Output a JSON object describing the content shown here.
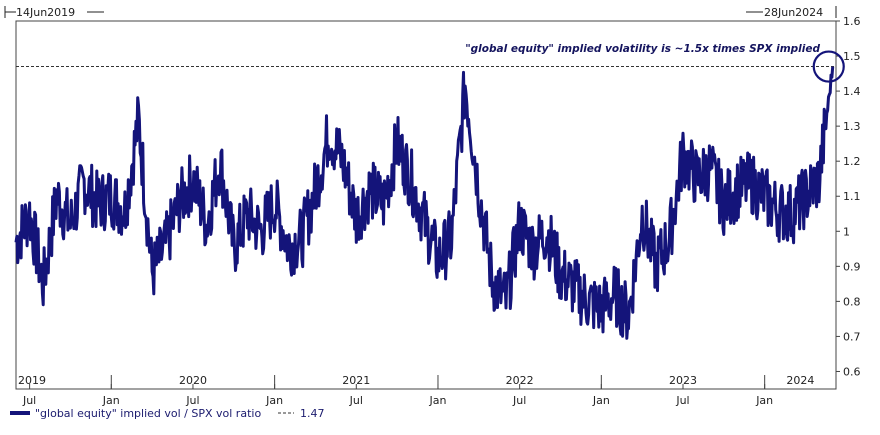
{
  "chart_data": {
    "type": "line",
    "start_date_label": "14Jun2019",
    "end_date_label": "28Jun2024",
    "annotation": "\"global equity\" implied volatility is ~1.5x times SPX implied",
    "x_month_labels": [
      "Jul",
      "Jan",
      "Jul",
      "Jan",
      "Jul",
      "Jan",
      "Jul",
      "Jan",
      "Jul",
      "Jan"
    ],
    "x_year_labels": [
      "2019",
      "2020",
      "2021",
      "2022",
      "2023",
      "2024"
    ],
    "y_ticks": [
      0.6,
      0.7,
      0.8,
      0.9,
      1,
      1.1,
      1.2,
      1.3,
      1.4,
      1.5,
      1.6
    ],
    "ylim": [
      0.55,
      1.6
    ],
    "grid": false,
    "reference_line": 1.47,
    "legend": {
      "series_label": "\"global equity\" implied vol / SPX vol ratio",
      "ref_label": "1.47",
      "position": "bottom-left"
    },
    "series": [
      {
        "name": "\"global equity\" implied vol / SPX vol ratio",
        "color": "#14147a",
        "x": [
          "2019-06",
          "2019-07",
          "2019-08",
          "2019-09",
          "2019-10",
          "2019-11",
          "2019-12",
          "2020-01",
          "2020-02",
          "2020-03",
          "2020-04",
          "2020-05",
          "2020-06",
          "2020-07",
          "2020-08",
          "2020-09",
          "2020-10",
          "2020-11",
          "2020-12",
          "2021-01",
          "2021-02",
          "2021-03",
          "2021-04",
          "2021-05",
          "2021-06",
          "2021-07",
          "2021-08",
          "2021-09",
          "2021-10",
          "2021-11",
          "2021-12",
          "2022-01",
          "2022-02",
          "2022-03",
          "2022-04",
          "2022-05",
          "2022-06",
          "2022-07",
          "2022-08",
          "2022-09",
          "2022-10",
          "2022-11",
          "2022-12",
          "2023-01",
          "2023-02",
          "2023-03",
          "2023-04",
          "2023-05",
          "2023-06",
          "2023-07",
          "2023-08",
          "2023-09",
          "2023-10",
          "2023-11",
          "2023-12",
          "2024-01",
          "2024-02",
          "2024-03",
          "2024-04",
          "2024-05",
          "2024-06"
        ],
        "values": [
          0.97,
          1.05,
          0.85,
          1.1,
          1.02,
          1.14,
          1.08,
          1.1,
          1.06,
          1.32,
          0.88,
          0.96,
          1.08,
          1.15,
          1.02,
          1.2,
          0.95,
          1.05,
          1.0,
          1.08,
          0.96,
          0.98,
          1.12,
          1.28,
          1.2,
          1.04,
          1.12,
          1.08,
          1.25,
          1.15,
          1.03,
          0.92,
          0.98,
          1.42,
          1.12,
          0.86,
          0.8,
          1.02,
          0.95,
          1.0,
          0.88,
          0.84,
          0.8,
          0.78,
          0.82,
          0.76,
          1.05,
          0.9,
          0.98,
          1.22,
          1.15,
          1.18,
          1.08,
          1.12,
          1.14,
          1.1,
          1.06,
          1.05,
          1.1,
          1.15,
          1.47
        ]
      }
    ]
  }
}
